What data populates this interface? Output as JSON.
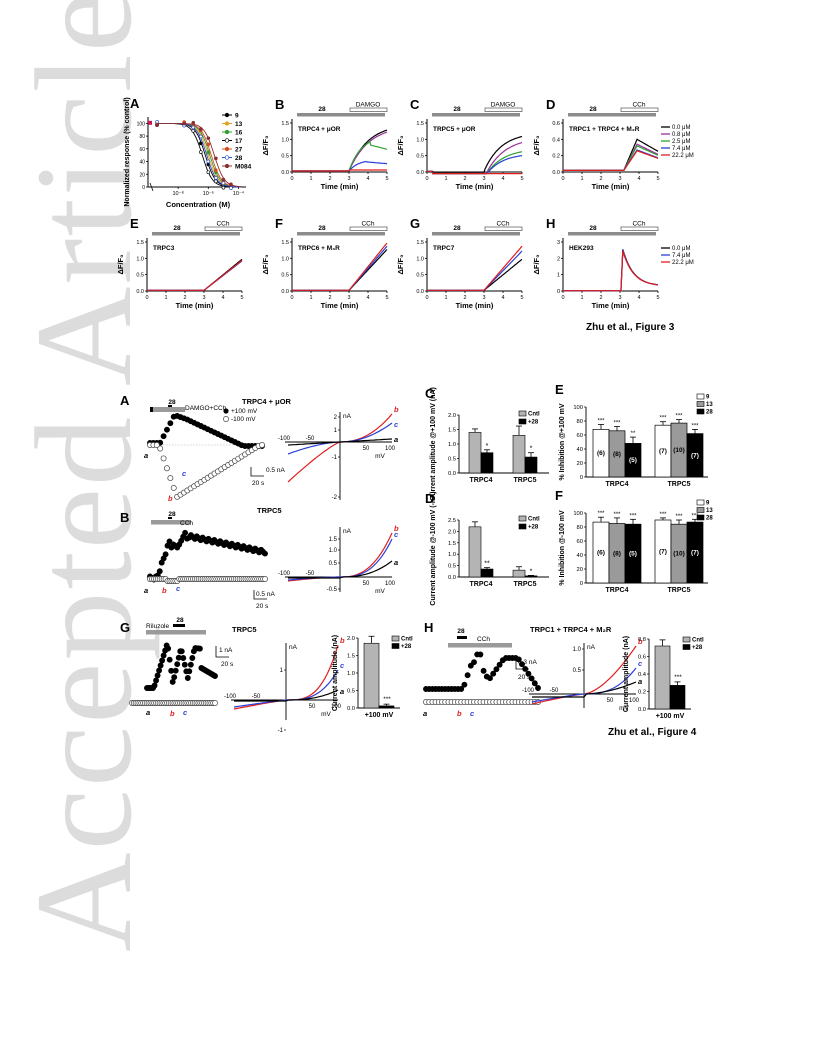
{
  "watermark": "Accepted Article",
  "figure3": {
    "caption": "Zhu et al., Figure 3",
    "A": {
      "letter": "A",
      "ylabel": "Normalized response (% control)",
      "xlabel": "Concentration (M)",
      "xticks": [
        "10⁻⁸",
        "10⁻⁶",
        "10⁻⁴"
      ],
      "yticks": [
        "0",
        "20",
        "40",
        "60",
        "80",
        "100"
      ],
      "legend": [
        "9",
        "13",
        "16",
        "17",
        "27",
        "28",
        "M084"
      ],
      "colors": [
        "#000000",
        "#e6a21c",
        "#2e9f2e",
        "#000000",
        "#d2501e",
        "#2a4fd8",
        "#8b2f2f"
      ],
      "ic50_log": [
        -6.2,
        -6.0,
        -5.9,
        -6.4,
        -5.8,
        -6.1,
        -5.6
      ]
    },
    "panels": [
      {
        "letter": "B",
        "label": "TRPC4 + μOR",
        "drug": "28",
        "agonist": "DAMGO",
        "ymax": 1.5,
        "yticks": [
          "0.0",
          "0.5",
          "1.0",
          "1.5"
        ],
        "xlabel": "Time (min)",
        "ylabel": "ΔF/F₀",
        "kind": "B"
      },
      {
        "letter": "C",
        "label": "TRPC5 + μOR",
        "drug": "28",
        "agonist": "DAMGO",
        "ymax": 1.5,
        "yticks": [
          "0.0",
          "0.5",
          "1.0",
          "1.5"
        ],
        "xlabel": "Time (min)",
        "ylabel": "ΔF/F₀",
        "kind": "C"
      },
      {
        "letter": "D",
        "label": "TRPC1 + TRPC4 + M₂R",
        "drug": "28",
        "agonist": "CCh",
        "ymax": 0.6,
        "yticks": [
          "0.0",
          "0.2",
          "0.4",
          "0.6"
        ],
        "xlabel": "Time (min)",
        "ylabel": "ΔF/F₀",
        "kind": "D",
        "legend": [
          "0.0 μM",
          "0.8 μM",
          "2.5 μM",
          "7.4 μM",
          "22.2 μM"
        ],
        "legend_colors": [
          "#000000",
          "#9b2f9b",
          "#2ea02e",
          "#2a40d8",
          "#e01e1e"
        ]
      },
      {
        "letter": "E",
        "label": "TRPC3",
        "drug": "28",
        "agonist": "CCh",
        "ymax": 1.5,
        "yticks": [
          "0.0",
          "0.5",
          "1.0",
          "1.5"
        ],
        "xlabel": "Time (min)",
        "ylabel": "ΔF/F₀",
        "kind": "E"
      },
      {
        "letter": "F",
        "label": "TRPC6 + M₃R",
        "drug": "28",
        "agonist": "CCh",
        "ymax": 1.5,
        "yticks": [
          "0.0",
          "0.5",
          "1.0",
          "1.5"
        ],
        "xlabel": "Time (min)",
        "ylabel": "ΔF/F₀",
        "kind": "F"
      },
      {
        "letter": "G",
        "label": "TRPC7",
        "drug": "28",
        "agonist": "CCh",
        "ymax": 1.5,
        "yticks": [
          "0.0",
          "0.5",
          "1.0",
          "1.5"
        ],
        "xlabel": "Time (min)",
        "ylabel": "ΔF/F₀",
        "kind": "G"
      },
      {
        "letter": "H",
        "label": "HEK293",
        "drug": "28",
        "agonist": "CCh",
        "ymax": 3,
        "yticks": [
          "0",
          "1",
          "2",
          "3"
        ],
        "xlabel": "Time (min)",
        "ylabel": "ΔF/F₀",
        "kind": "H",
        "legend": [
          "0.0 μM",
          "7.4 μM",
          "22.2 μM"
        ],
        "legend_colors": [
          "#000000",
          "#2a40d8",
          "#e01e1e"
        ]
      }
    ],
    "xticks": [
      "0",
      "1",
      "2",
      "3",
      "4",
      "5"
    ]
  },
  "figure4": {
    "caption": "Zhu et al., Figure 4",
    "A": {
      "letter": "A",
      "drug": "28",
      "agonist": "DAMGO+CCh",
      "title": "TRPC4 + μOR",
      "leg_pos": "+100 mV",
      "leg_neg": "-100 mV",
      "scale_i": "0.5 nA",
      "scale_t": "20 s",
      "iv_unit": "nA",
      "iv_x": "mV",
      "iv_xticks": [
        "-100",
        "-50",
        "50",
        "100"
      ],
      "iv_yticks": [
        "2",
        "1",
        "-1",
        "-2"
      ]
    },
    "B": {
      "letter": "B",
      "drug": "28",
      "agonist": "CCh",
      "title": "TRPC5",
      "scale_i": "0.5 nA",
      "scale_t": "20 s",
      "iv_unit": "nA",
      "iv_x": "mV",
      "iv_xticks": [
        "-100",
        "-50",
        "50",
        "100"
      ],
      "iv_yticks": [
        "1.5",
        "1.0",
        "0.5",
        "-0.5"
      ]
    },
    "G": {
      "letter": "G",
      "drug": "28",
      "agonist": "Riluzole",
      "title": "TRPC5",
      "scale_i": "1 nA",
      "scale_t": "20 s",
      "iv_unit": "nA",
      "iv_x": "mV",
      "iv_xticks": [
        "-100",
        "-50",
        "50",
        "100"
      ],
      "iv_yticks": [
        "1",
        "-1"
      ]
    },
    "H": {
      "letter": "H",
      "drug": "28",
      "agonist": "CCh",
      "title": "TRPC1 + TRPC4 + M₂R",
      "scale_i": "0.3 nA",
      "scale_t": "20 s",
      "iv_unit": "nA",
      "iv_x": "mV",
      "iv_xticks": [
        "-100",
        "-50",
        "50",
        "100"
      ],
      "iv_yticks": [
        "1.0",
        "0.5"
      ]
    },
    "trace_marks": [
      "a",
      "b",
      "c"
    ],
    "iv_colors": {
      "a": "#000000",
      "b": "#e01e1e",
      "c": "#2a40d8"
    },
    "C": {
      "letter": "C",
      "ylabel": "Current amplitude @+100 mV (nA)",
      "groups": [
        "TRPC4",
        "TRPC5"
      ],
      "legend": [
        "Cntl",
        "+28"
      ],
      "yticks": [
        "0.0",
        "0.5",
        "1.0",
        "1.5",
        "2.0"
      ],
      "ymax": 2.0,
      "values": [
        [
          1.4,
          0.7
        ],
        [
          1.3,
          0.55
        ]
      ],
      "errors": [
        [
          0.12,
          0.1
        ],
        [
          0.32,
          0.15
        ]
      ],
      "stars": [
        "*",
        "*"
      ]
    },
    "D": {
      "letter": "D",
      "ylabel": "Current amplitude @-100 mV (-nA)",
      "groups": [
        "TRPC4",
        "TRPC5"
      ],
      "legend": [
        "Cntl",
        "+28"
      ],
      "yticks": [
        "0.0",
        "0.5",
        "1.0",
        "1.5",
        "2.0",
        "2.5"
      ],
      "ymax": 2.5,
      "values": [
        [
          2.2,
          0.35
        ],
        [
          0.3,
          0.05
        ]
      ],
      "errors": [
        [
          0.22,
          0.06
        ],
        [
          0.15,
          0.02
        ]
      ],
      "stars": [
        "**",
        "*"
      ]
    },
    "E": {
      "letter": "E",
      "ylabel": "% Inhibition @+100 mV",
      "groups": [
        "TRPC4",
        "TRPC5"
      ],
      "legend": [
        "9",
        "13",
        "28"
      ],
      "yticks": [
        "0",
        "20",
        "40",
        "60",
        "80",
        "100"
      ],
      "ymax": 100,
      "values": [
        [
          68,
          66,
          48
        ],
        [
          74,
          77,
          62
        ]
      ],
      "errors": [
        [
          7,
          6,
          9
        ],
        [
          5,
          5,
          6
        ]
      ],
      "stars": [
        [
          "***",
          "***",
          "**"
        ],
        [
          "***",
          "***",
          "***"
        ]
      ],
      "ns": [
        "(6)",
        "(8)",
        "(5)",
        "(7)",
        "(10)",
        "(7)"
      ]
    },
    "F": {
      "letter": "F",
      "ylabel": "% Inhibition @-100 mV",
      "groups": [
        "TRPC4",
        "TRPC5"
      ],
      "legend": [
        "9",
        "13",
        "28"
      ],
      "yticks": [
        "0",
        "20",
        "40",
        "60",
        "80",
        "100"
      ],
      "ymax": 100,
      "values": [
        [
          87,
          85,
          84
        ],
        [
          90,
          84,
          87
        ]
      ],
      "errors": [
        [
          7,
          8,
          7
        ],
        [
          3,
          6,
          4
        ]
      ],
      "stars": [
        [
          "***",
          "***",
          "***"
        ],
        [
          "***",
          "***",
          "***"
        ]
      ],
      "ns": [
        "(6)",
        "(8)",
        "(5)",
        "(7)",
        "(10)",
        "(7)"
      ]
    },
    "Gbar": {
      "ylabel": "Current amplitude (nA)",
      "xlabel": "+100 mV",
      "legend": [
        "Cntl",
        "+28"
      ],
      "yticks": [
        "0.0",
        "0.5",
        "1.0",
        "1.5",
        "2.0"
      ],
      "ymax": 2.0,
      "values": [
        1.85,
        0.06
      ],
      "errors": [
        0.2,
        0.05
      ],
      "stars": "***"
    },
    "Hbar": {
      "ylabel": "Current amplitude (nA)",
      "xlabel": "+100 mV",
      "legend": [
        "Cntl",
        "+28"
      ],
      "yticks": [
        "0.0",
        "0.2",
        "0.4",
        "0.6",
        "0.8"
      ],
      "ymax": 0.8,
      "values": [
        0.72,
        0.27
      ],
      "errors": [
        0.07,
        0.04
      ],
      "stars": "***"
    }
  }
}
